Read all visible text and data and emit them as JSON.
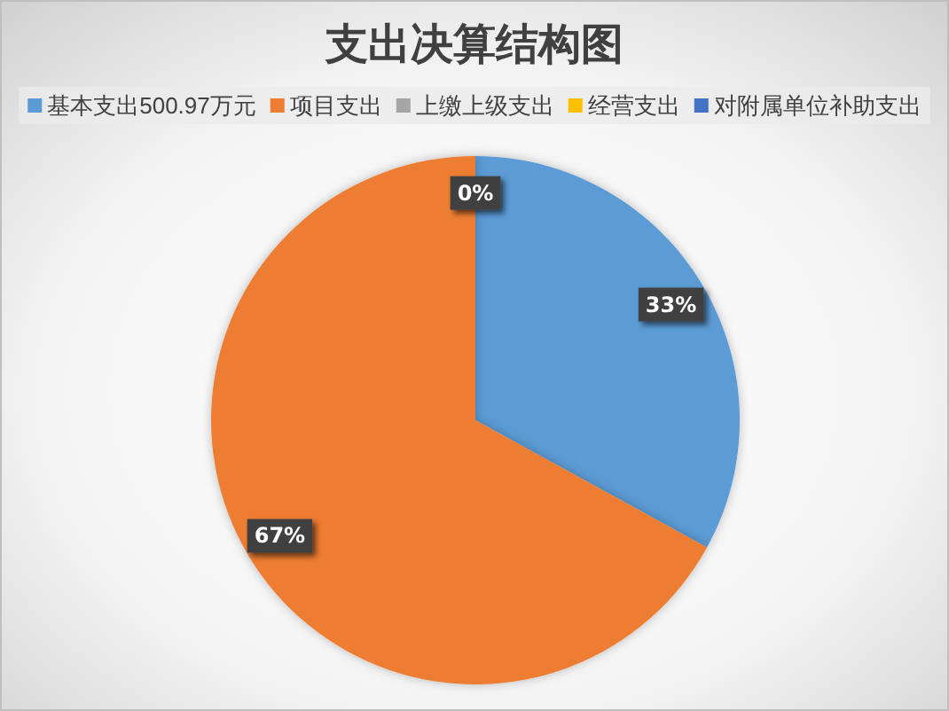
{
  "chart_data": {
    "type": "pie",
    "title": "支出决算结构图",
    "categories": [
      "基本支出500.97万元",
      "项目支出",
      "上缴上级支出",
      "经营支出",
      "对附属单位补助支出"
    ],
    "values": [
      33,
      67,
      0,
      0,
      0
    ],
    "colors": [
      "#5b9bd5",
      "#ed7d31",
      "#a5a5a5",
      "#ffc000",
      "#4472c4"
    ],
    "value_labels": [
      "33%",
      "67%",
      "0%",
      null,
      null
    ],
    "legend": "top"
  }
}
